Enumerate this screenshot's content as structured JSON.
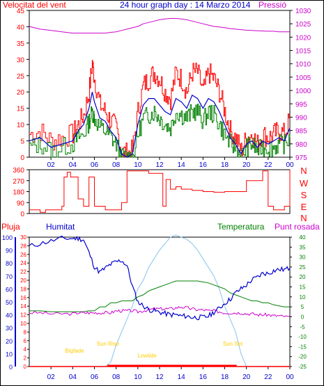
{
  "header": {
    "title": "24 hour graph day : 14 Marzo 2014",
    "wind_label": "Velocitat del vent",
    "pressure_label": "Pressió"
  },
  "bottom_labels": {
    "rain": "Pluja",
    "humidity": "Humitat",
    "temperature": "Temperatura",
    "dewpoint": "Punt rosada"
  },
  "colors": {
    "wind_gust": "#ff0000",
    "wind_speed": "#008000",
    "wind_avg": "#0000cc",
    "pressure": "#cc00cc",
    "direction": "#ff0000",
    "humidity": "#0000cc",
    "temperature": "#008000",
    "dewpoint": "#cc00cc",
    "solar": "#99ccee",
    "rain": "#ff0000",
    "sun_text": "#ffcc00"
  },
  "chart_data": [
    {
      "type": "line",
      "name": "wind",
      "x_ticks": [
        "02",
        "04",
        "06",
        "08",
        "10",
        "12",
        "14",
        "16",
        "18",
        "20",
        "22",
        "00"
      ],
      "y_left": {
        "label": "Velocitat del vent",
        "lim": [
          0,
          45
        ],
        "ticks": [
          0,
          5,
          10,
          15,
          20,
          25,
          30,
          35,
          40,
          45
        ]
      },
      "y_right": {
        "label": "Pressió",
        "lim": [
          975,
          1030
        ],
        "ticks": [
          975,
          980,
          985,
          990,
          995,
          1000,
          1005,
          1010,
          1015,
          1020,
          1025,
          1030
        ]
      },
      "x_hours": [
        0,
        1,
        2,
        3,
        4,
        4.5,
        5,
        5.5,
        5.8,
        6,
        6.5,
        7,
        7.5,
        8,
        8.5,
        9,
        9.5,
        10,
        10.5,
        11,
        11.5,
        12,
        12.5,
        13,
        13.5,
        14,
        14.5,
        15,
        15.5,
        16,
        16.5,
        17,
        17.5,
        18,
        18.5,
        19,
        19.5,
        20,
        20.5,
        21,
        21.5,
        22,
        22.5,
        23,
        23.5,
        24
      ],
      "series": [
        {
          "name": "gust",
          "values": [
            7,
            8,
            5,
            6,
            7,
            10,
            13,
            20,
            29,
            24,
            16,
            14,
            11,
            9,
            2,
            1,
            2,
            14,
            22,
            24,
            26,
            24,
            20,
            18,
            26,
            24,
            20,
            26,
            26,
            20,
            26,
            24,
            20,
            14,
            8,
            6,
            2,
            6,
            7,
            4,
            7,
            6,
            7,
            8,
            7,
            12
          ]
        },
        {
          "name": "avg",
          "values": [
            5,
            6,
            3,
            4,
            5,
            8,
            10,
            15,
            20,
            17,
            12,
            11,
            8,
            6,
            1,
            0,
            1,
            10,
            16,
            18,
            18,
            16,
            14,
            13,
            18,
            17,
            15,
            19,
            18,
            15,
            18,
            17,
            14,
            10,
            6,
            4,
            1,
            4,
            5,
            3,
            5,
            4,
            5,
            6,
            5,
            9
          ]
        },
        {
          "name": "speed",
          "values": [
            3,
            4,
            2,
            3,
            4,
            6,
            7,
            11,
            14,
            12,
            9,
            8,
            6,
            4,
            0,
            0,
            0,
            7,
            12,
            13,
            14,
            12,
            10,
            9,
            14,
            13,
            12,
            14,
            14,
            11,
            14,
            13,
            10,
            7,
            4,
            3,
            0,
            3,
            4,
            2,
            3,
            3,
            3,
            4,
            4,
            6
          ]
        },
        {
          "name": "pressure",
          "values": [
            1024,
            1023,
            1022.5,
            1022,
            1021.5,
            1021.5,
            1021.5,
            1021.5,
            1021.5,
            1021.5,
            1021.5,
            1021.5,
            1021.8,
            1022,
            1022.5,
            1023,
            1023.5,
            1024,
            1025,
            1025.5,
            1026,
            1026.5,
            1026.8,
            1027,
            1027,
            1026.8,
            1026.5,
            1026,
            1025.5,
            1025,
            1024.5,
            1024,
            1023.8,
            1023.5,
            1023.2,
            1023,
            1022.8,
            1022.6,
            1022.5,
            1022.4,
            1022.3,
            1022.2,
            1022.2,
            1022,
            1022,
            1022
          ]
        }
      ]
    },
    {
      "type": "line",
      "name": "wind_direction",
      "y_left": {
        "lim": [
          0,
          360
        ],
        "ticks": [
          0,
          90,
          180,
          270,
          360
        ]
      },
      "y_right": {
        "ticks": [
          "N",
          "W",
          "S",
          "E",
          "N"
        ]
      },
      "x_hours": [
        0,
        0.5,
        1,
        1.2,
        1.5,
        2,
        2.5,
        3,
        3.2,
        3.5,
        3.8,
        4,
        4.5,
        5,
        5.5,
        6,
        6.5,
        7,
        7.5,
        8,
        8.2,
        8.5,
        9,
        10,
        11,
        11.5,
        12,
        12.3,
        12.6,
        13,
        13.5,
        14,
        15,
        16,
        17,
        18,
        19,
        20,
        21,
        21.5,
        22,
        22.5,
        23,
        23.5,
        24
      ],
      "series": [
        {
          "name": "direction",
          "values": [
            30,
            30,
            10,
            10,
            30,
            30,
            30,
            60,
            300,
            340,
            300,
            300,
            120,
            60,
            300,
            60,
            60,
            30,
            30,
            30,
            30,
            90,
            350,
            350,
            330,
            330,
            330,
            60,
            280,
            200,
            220,
            200,
            190,
            180,
            175,
            180,
            180,
            270,
            270,
            350,
            60,
            30,
            30,
            60,
            360
          ]
        }
      ]
    },
    {
      "type": "line",
      "name": "climate",
      "x_ticks": [
        "02",
        "04",
        "06",
        "08",
        "10",
        "12",
        "14",
        "16",
        "18",
        "20",
        "22",
        "00"
      ],
      "y_rain": {
        "label": "Pluja",
        "lim": [
          0,
          30
        ],
        "ticks": [
          0,
          2,
          4,
          6,
          8,
          10,
          12,
          14,
          16,
          18,
          20,
          22,
          24,
          26,
          28,
          30
        ]
      },
      "y_humidity": {
        "label": "Humitat",
        "lim": [
          0,
          100
        ],
        "ticks": [
          0,
          10,
          20,
          30,
          40,
          50,
          60,
          70,
          80,
          90,
          100
        ]
      },
      "y_temperature": {
        "label": "Temperatura",
        "lim": [
          -25,
          40
        ],
        "ticks": [
          -25,
          -20,
          -15,
          -10,
          -5,
          0,
          5,
          10,
          15,
          20,
          25,
          30,
          35,
          40
        ]
      },
      "annotations": [
        "Bigfade",
        "Sun Rise",
        "Lowtide",
        "Sun Set"
      ],
      "x_hours": [
        0,
        1,
        2,
        3,
        4,
        4.5,
        5,
        5.5,
        6,
        6.5,
        7,
        7.5,
        8,
        8.5,
        9,
        9.5,
        10,
        10.5,
        11,
        11.5,
        12,
        12.5,
        13,
        13.5,
        14,
        14.5,
        15,
        15.5,
        16,
        16.5,
        17,
        17.5,
        18,
        18.5,
        19,
        19.5,
        20,
        20.5,
        21,
        21.5,
        22,
        22.5,
        23,
        23.5,
        24
      ],
      "series": [
        {
          "name": "humidity",
          "values": [
            93,
            95,
            97,
            99,
            99,
            99,
            98,
            88,
            77,
            73,
            76,
            79,
            81,
            82,
            78,
            62,
            50,
            47,
            44,
            43,
            42,
            41,
            40,
            40,
            39,
            39,
            38,
            38,
            38,
            39,
            42,
            45,
            49,
            52,
            57,
            60,
            63,
            67,
            69,
            72,
            72,
            74,
            75,
            75,
            76
          ]
        },
        {
          "name": "temperature",
          "values": [
            3,
            3,
            2.5,
            2.5,
            2.5,
            2.5,
            2.5,
            3,
            3,
            5,
            5,
            7,
            7,
            8,
            8,
            8,
            10,
            11,
            13,
            14,
            15,
            16,
            17,
            18,
            18,
            18,
            18,
            18,
            17.5,
            17,
            16,
            15,
            14,
            12,
            11,
            10,
            9,
            8,
            8,
            7,
            7,
            6,
            5.5,
            5,
            5
          ]
        },
        {
          "name": "dewpoint",
          "values": [
            2,
            2,
            1.5,
            1.5,
            1.5,
            2,
            2,
            2,
            2,
            2,
            2,
            2,
            3,
            3,
            3,
            3,
            2.5,
            3,
            3.5,
            4,
            4,
            4,
            4,
            4.5,
            5,
            4.5,
            4,
            3.5,
            3.5,
            3,
            3,
            2.5,
            2,
            2,
            2,
            2,
            1.5,
            1.5,
            1,
            1,
            1,
            0.5,
            0.5,
            0,
            0
          ]
        },
        {
          "name": "solar",
          "values": [
            0,
            0,
            0,
            0,
            0,
            0,
            0,
            0,
            0,
            0,
            0,
            1,
            5,
            8,
            11,
            14,
            18,
            20,
            23,
            25,
            27,
            28.5,
            30,
            30.5,
            30,
            29.5,
            28.5,
            27,
            25,
            23,
            21,
            18,
            14,
            11,
            8,
            3,
            0,
            0,
            0,
            0,
            0,
            0,
            0,
            0,
            0
          ]
        },
        {
          "name": "rain",
          "values": [
            0,
            0,
            0,
            0,
            0,
            0,
            0,
            0,
            0,
            0,
            0,
            0,
            0,
            0,
            0,
            0,
            0,
            0,
            0,
            0,
            0,
            0,
            0,
            0,
            0,
            0,
            0,
            0,
            0,
            0,
            0,
            0,
            0,
            0,
            0,
            0,
            0,
            0,
            0,
            0,
            0,
            0,
            0,
            0,
            0
          ]
        }
      ]
    }
  ]
}
